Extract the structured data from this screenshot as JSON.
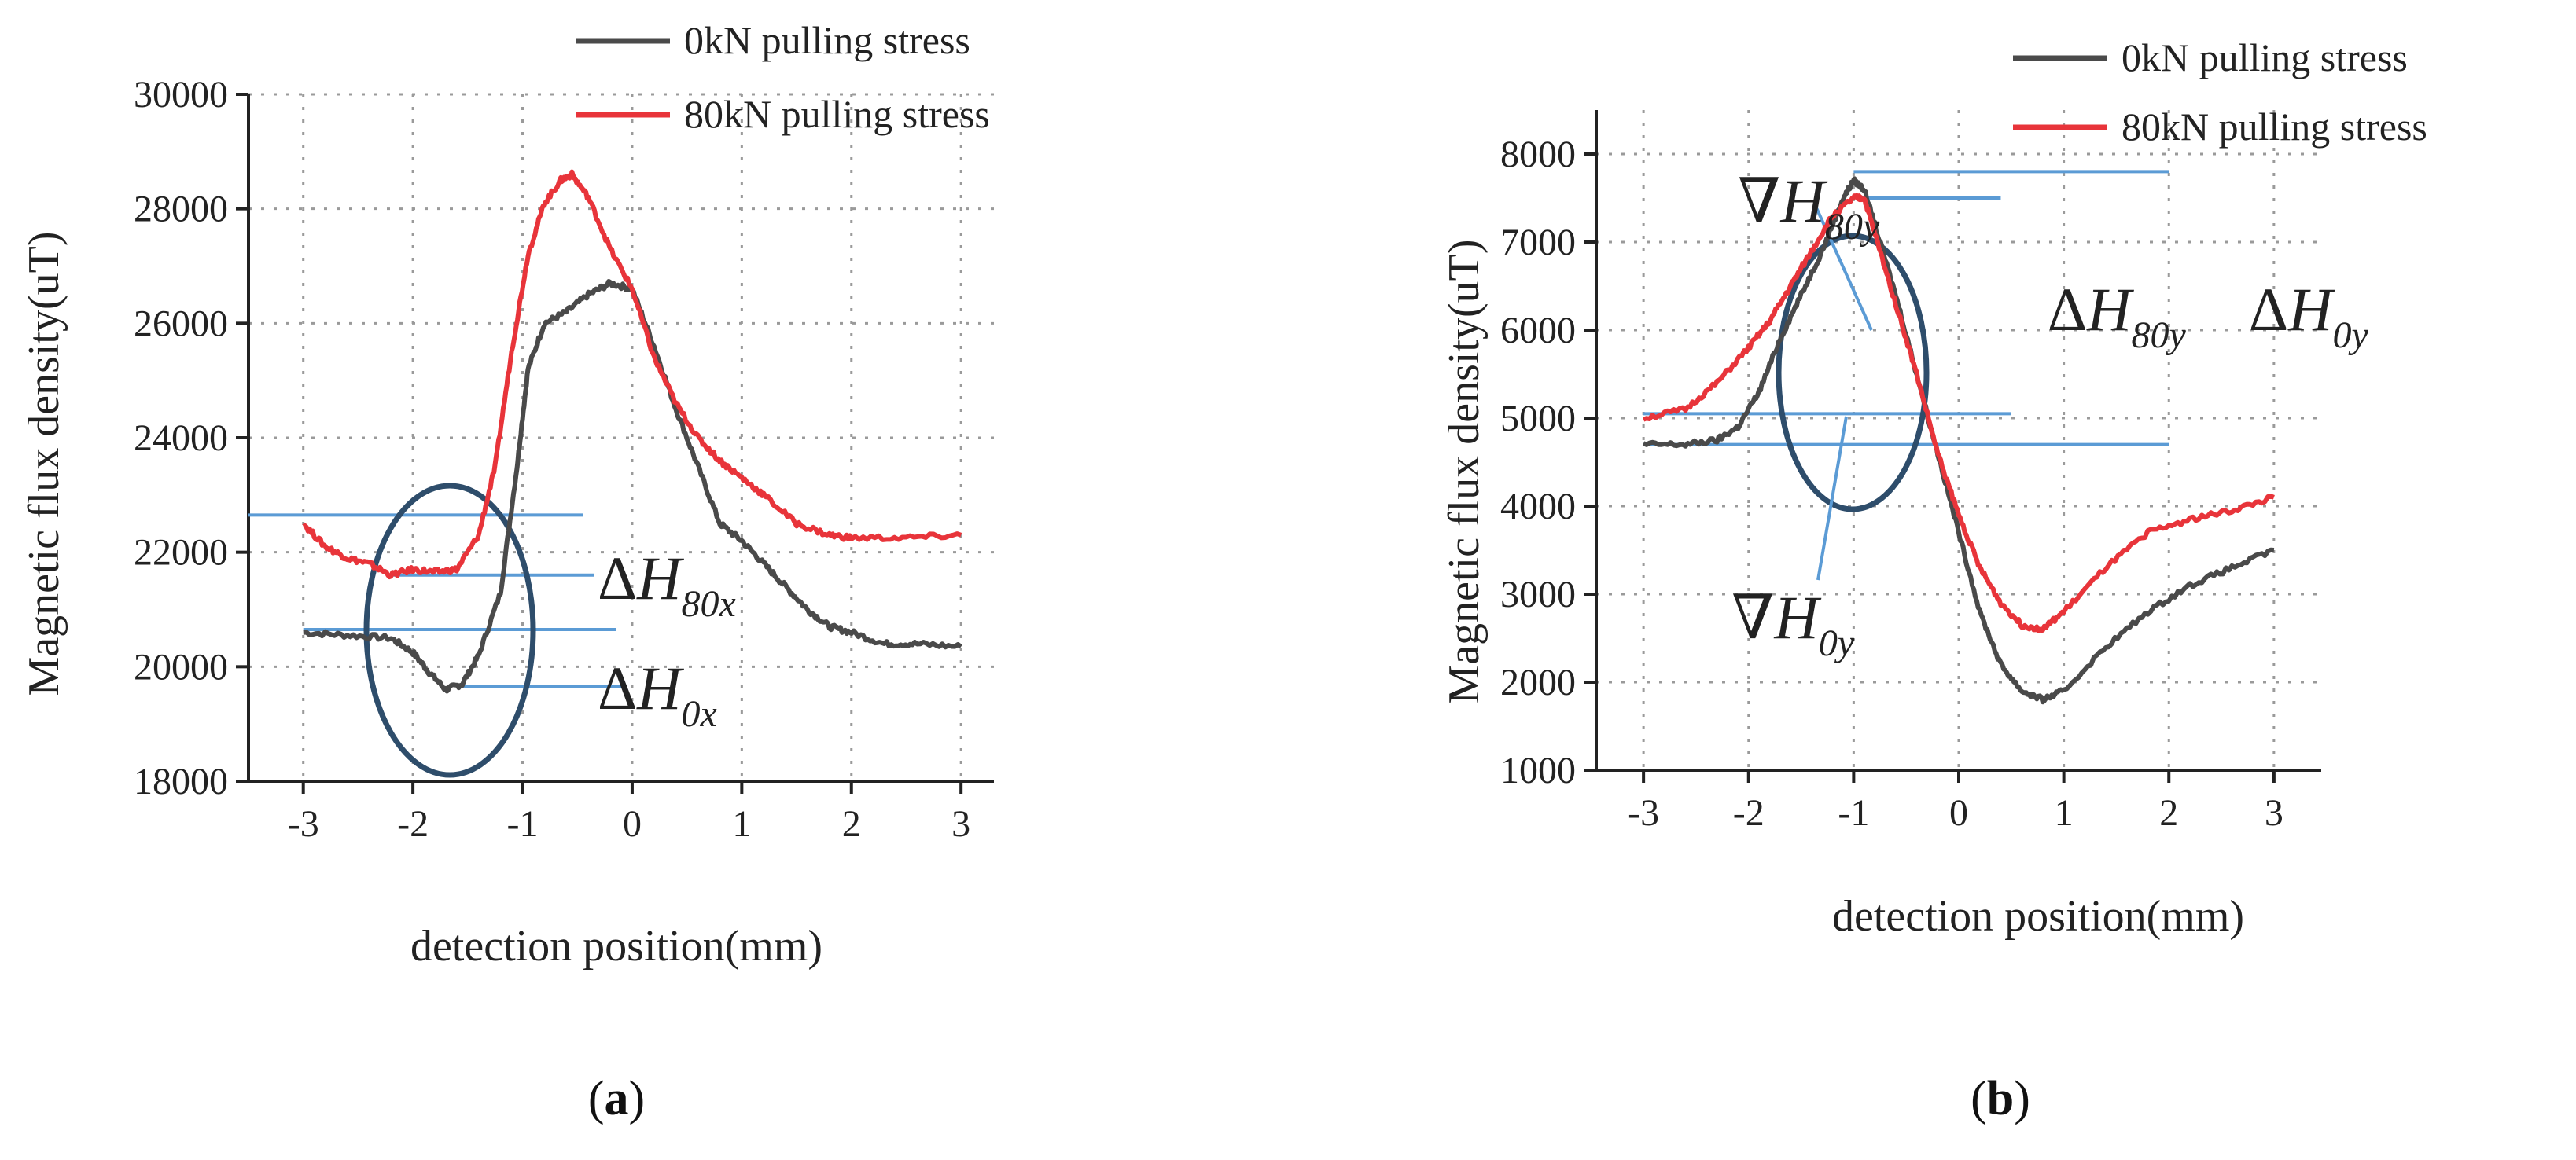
{
  "figure": {
    "panels": [
      {
        "id": "a",
        "label_open": "(",
        "label_letter": "a",
        "label_close": ")",
        "annotations": {
          "h80_delta": "Δ",
          "h80_main": "H",
          "h80_sub": "80x",
          "h0_delta": "Δ",
          "h0_main": "H",
          "h0_sub": "0x"
        }
      },
      {
        "id": "b",
        "label_open": "(",
        "label_letter": "b",
        "label_close": ")",
        "annotations": {
          "g80_nabla": "∇",
          "g80_main": "H",
          "g80_sub": "80y",
          "g0_nabla": "∇",
          "g0_main": "H",
          "g0_sub": "0y",
          "d80_delta": "Δ",
          "d80_main": "H",
          "d80_sub": "80y",
          "d0_delta": "Δ",
          "d0_main": "H",
          "d0_sub": "0y"
        }
      }
    ]
  },
  "colors": {
    "series_0kN": "#4a4a4a",
    "series_80kN": "#e8343a",
    "annotation_lines": "#5b9bd5",
    "ellipse": "#2e4d6b",
    "grid": "#9a9a9a",
    "axis": "#222222"
  },
  "chart_data": [
    {
      "type": "line",
      "panel": "a",
      "xlabel": "detection position(mm)",
      "ylabel": "Magnetic flux density(uT)",
      "xlim": [
        -3.5,
        3.3
      ],
      "ylim": [
        18000,
        30000
      ],
      "xticks": [
        -3,
        -2,
        -1,
        0,
        1,
        2,
        3
      ],
      "yticks": [
        18000,
        20000,
        22000,
        24000,
        26000,
        28000,
        30000
      ],
      "grid": true,
      "legend_position": "top-right",
      "series": [
        {
          "name": "0kN pulling stress",
          "color": "#4a4a4a",
          "x": [
            -3.0,
            -2.6,
            -2.2,
            -2.0,
            -1.85,
            -1.7,
            -1.55,
            -1.4,
            -1.2,
            -1.05,
            -0.95,
            -0.8,
            -0.6,
            -0.4,
            -0.2,
            0.0,
            0.2,
            0.4,
            0.6,
            0.8,
            1.0,
            1.2,
            1.4,
            1.6,
            1.8,
            2.0,
            2.3,
            2.6,
            3.0
          ],
          "y": [
            20600,
            20550,
            20500,
            20250,
            19900,
            19600,
            19700,
            20200,
            21300,
            23500,
            25200,
            26000,
            26200,
            26500,
            26700,
            26600,
            25600,
            24500,
            23500,
            22500,
            22200,
            21800,
            21400,
            21000,
            20700,
            20600,
            20400,
            20400,
            20350
          ]
        },
        {
          "name": "80kN pulling stress",
          "color": "#e8343a",
          "x": [
            -3.0,
            -2.8,
            -2.6,
            -2.4,
            -2.2,
            -2.0,
            -1.8,
            -1.6,
            -1.4,
            -1.25,
            -1.1,
            -0.95,
            -0.8,
            -0.65,
            -0.55,
            -0.4,
            -0.2,
            0.0,
            0.2,
            0.4,
            0.6,
            0.8,
            1.0,
            1.2,
            1.5,
            1.8,
            2.0,
            2.5,
            3.0
          ],
          "y": [
            22500,
            22100,
            21900,
            21800,
            21600,
            21700,
            21650,
            21700,
            22300,
            23500,
            25500,
            27200,
            28100,
            28500,
            28600,
            28200,
            27300,
            26600,
            25400,
            24600,
            24000,
            23600,
            23300,
            23000,
            22500,
            22300,
            22250,
            22250,
            22300
          ]
        }
      ]
    },
    {
      "type": "line",
      "panel": "b",
      "xlabel": "detection position(mm)",
      "ylabel": "Magnetic flux density(uT)",
      "xlim": [
        -3.45,
        3.45
      ],
      "ylim": [
        1000,
        8500
      ],
      "xticks": [
        -3,
        -2,
        -1,
        0,
        1,
        2,
        3
      ],
      "yticks": [
        1000,
        2000,
        3000,
        4000,
        5000,
        6000,
        7000,
        8000
      ],
      "grid": true,
      "legend_position": "top-right",
      "series": [
        {
          "name": "0kN pulling stress",
          "color": "#4a4a4a",
          "x": [
            -3.0,
            -2.6,
            -2.3,
            -2.1,
            -1.9,
            -1.7,
            -1.5,
            -1.3,
            -1.1,
            -1.0,
            -0.9,
            -0.8,
            -0.6,
            -0.4,
            -0.2,
            0.0,
            0.2,
            0.4,
            0.6,
            0.8,
            1.0,
            1.4,
            1.8,
            2.2,
            2.6,
            3.0
          ],
          "y": [
            4700,
            4700,
            4750,
            4900,
            5300,
            5900,
            6400,
            6900,
            7500,
            7700,
            7600,
            7200,
            6400,
            5500,
            4600,
            3700,
            2800,
            2200,
            1900,
            1800,
            1900,
            2400,
            2800,
            3100,
            3300,
            3500
          ]
        },
        {
          "name": "80kN pulling stress",
          "color": "#e8343a",
          "x": [
            -3.0,
            -2.6,
            -2.3,
            -2.0,
            -1.8,
            -1.6,
            -1.4,
            -1.2,
            -1.0,
            -0.9,
            -0.8,
            -0.6,
            -0.4,
            -0.2,
            0.0,
            0.2,
            0.4,
            0.6,
            0.8,
            1.0,
            1.4,
            1.8,
            2.2,
            2.6,
            3.0
          ],
          "y": [
            5000,
            5100,
            5400,
            5800,
            6100,
            6500,
            6900,
            7300,
            7500,
            7500,
            7100,
            6300,
            5500,
            4600,
            3900,
            3300,
            2900,
            2650,
            2600,
            2800,
            3300,
            3700,
            3850,
            3950,
            4100
          ]
        }
      ]
    }
  ]
}
